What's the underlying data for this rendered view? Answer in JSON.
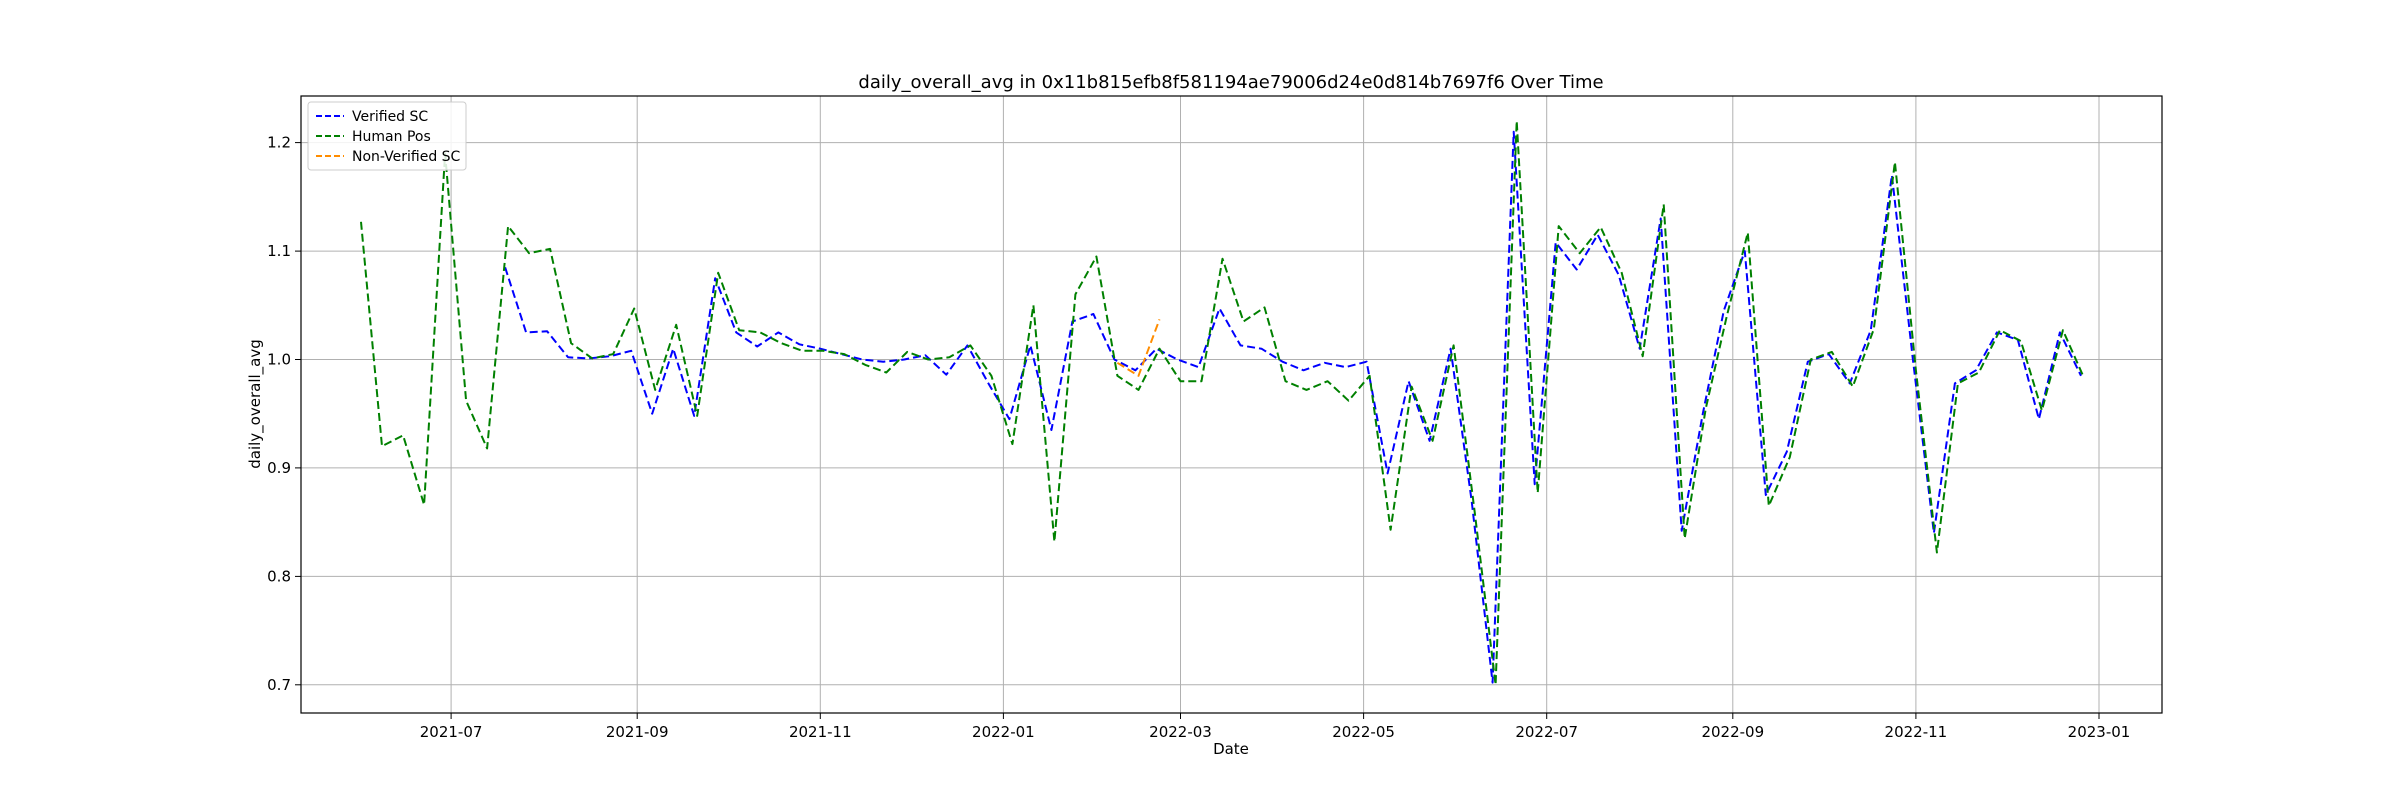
{
  "chart_data": {
    "type": "line",
    "title": "daily_overall_avg in 0x11b815efb8f581194ae79006d24e0d814b7697f6 Over Time",
    "xlabel": "Date",
    "ylabel": "daily_overall_avg",
    "xlim": [
      "2021-05-12",
      "2023-01-22"
    ],
    "ylim": [
      0.674,
      1.243
    ],
    "grid": true,
    "legend_position": "top-left",
    "x_ticks": [
      {
        "date": "2021-07-01",
        "label": "2021-07"
      },
      {
        "date": "2021-09-01",
        "label": "2021-09"
      },
      {
        "date": "2021-11-01",
        "label": "2021-11"
      },
      {
        "date": "2022-01-01",
        "label": "2022-01"
      },
      {
        "date": "2022-03-01",
        "label": "2022-03"
      },
      {
        "date": "2022-05-01",
        "label": "2022-05"
      },
      {
        "date": "2022-07-01",
        "label": "2022-07"
      },
      {
        "date": "2022-09-01",
        "label": "2022-09"
      },
      {
        "date": "2022-11-01",
        "label": "2022-11"
      },
      {
        "date": "2023-01-01",
        "label": "2023-01"
      }
    ],
    "y_ticks": [
      {
        "value": 0.7,
        "label": "0.7"
      },
      {
        "value": 0.8,
        "label": "0.8"
      },
      {
        "value": 0.9,
        "label": "0.9"
      },
      {
        "value": 1.0,
        "label": "1.0"
      },
      {
        "value": 1.1,
        "label": "1.1"
      },
      {
        "value": 1.2,
        "label": "1.2"
      }
    ],
    "series": [
      {
        "name": "Verified SC",
        "color": "#0000ff",
        "points": [
          [
            "2021-07-19",
            1.085
          ],
          [
            "2021-07-26",
            1.025
          ],
          [
            "2021-08-02",
            1.026
          ],
          [
            "2021-08-09",
            1.002
          ],
          [
            "2021-08-16",
            1.001
          ],
          [
            "2021-08-23",
            1.003
          ],
          [
            "2021-08-30",
            1.008
          ],
          [
            "2021-09-06",
            0.95
          ],
          [
            "2021-09-13",
            1.01
          ],
          [
            "2021-09-20",
            0.948
          ],
          [
            "2021-09-27",
            1.075
          ],
          [
            "2021-10-04",
            1.025
          ],
          [
            "2021-10-11",
            1.012
          ],
          [
            "2021-10-18",
            1.025
          ],
          [
            "2021-10-25",
            1.014
          ],
          [
            "2021-11-01",
            1.01
          ],
          [
            "2021-11-08",
            1.005
          ],
          [
            "2021-11-15",
            1.0
          ],
          [
            "2021-11-22",
            0.998
          ],
          [
            "2021-11-29",
            1.0
          ],
          [
            "2021-12-06",
            1.004
          ],
          [
            "2021-12-13",
            0.986
          ],
          [
            "2021-12-20",
            1.013
          ],
          [
            "2021-12-27",
            0.978
          ],
          [
            "2022-01-03",
            0.945
          ],
          [
            "2022-01-10",
            1.013
          ],
          [
            "2022-01-17",
            0.935
          ],
          [
            "2022-01-24",
            1.035
          ],
          [
            "2022-01-31",
            1.042
          ],
          [
            "2022-02-07",
            1.0
          ],
          [
            "2022-02-14",
            0.99
          ],
          [
            "2022-02-21",
            1.01
          ],
          [
            "2022-02-28",
            1.0
          ],
          [
            "2022-03-07",
            0.993
          ],
          [
            "2022-03-14",
            1.047
          ],
          [
            "2022-03-21",
            1.013
          ],
          [
            "2022-03-28",
            1.01
          ],
          [
            "2022-04-04",
            0.998
          ],
          [
            "2022-04-11",
            0.99
          ],
          [
            "2022-04-18",
            0.997
          ],
          [
            "2022-04-25",
            0.993
          ],
          [
            "2022-05-02",
            0.998
          ],
          [
            "2022-05-09",
            0.895
          ],
          [
            "2022-05-16",
            0.98
          ],
          [
            "2022-05-23",
            0.925
          ],
          [
            "2022-05-30",
            1.01
          ],
          [
            "2022-06-06",
            0.87
          ],
          [
            "2022-06-13",
            0.702
          ],
          [
            "2022-06-20",
            1.21
          ],
          [
            "2022-06-27",
            0.885
          ],
          [
            "2022-07-04",
            1.108
          ],
          [
            "2022-07-11",
            1.083
          ],
          [
            "2022-07-18",
            1.115
          ],
          [
            "2022-07-25",
            1.078
          ],
          [
            "2022-08-01",
            1.01
          ],
          [
            "2022-08-08",
            1.13
          ],
          [
            "2022-08-15",
            0.842
          ],
          [
            "2022-08-22",
            0.95
          ],
          [
            "2022-08-29",
            1.045
          ],
          [
            "2022-09-05",
            1.1
          ],
          [
            "2022-09-12",
            0.875
          ],
          [
            "2022-09-19",
            0.915
          ],
          [
            "2022-09-26",
            0.998
          ],
          [
            "2022-10-03",
            1.005
          ],
          [
            "2022-10-10",
            0.978
          ],
          [
            "2022-10-17",
            1.027
          ],
          [
            "2022-10-24",
            1.17
          ],
          [
            "2022-10-31",
            1.0
          ],
          [
            "2022-11-07",
            0.84
          ],
          [
            "2022-11-14",
            0.978
          ],
          [
            "2022-11-21",
            0.99
          ],
          [
            "2022-11-28",
            1.025
          ],
          [
            "2022-12-05",
            1.018
          ],
          [
            "2022-12-12",
            0.945
          ],
          [
            "2022-12-19",
            1.025
          ],
          [
            "2022-12-26",
            0.985
          ]
        ]
      },
      {
        "name": "Human Pos",
        "color": "#008000",
        "points": [
          [
            "2021-06-01",
            1.127
          ],
          [
            "2021-06-08",
            0.92
          ],
          [
            "2021-06-15",
            0.93
          ],
          [
            "2021-06-22",
            0.866
          ],
          [
            "2021-06-29",
            1.19
          ],
          [
            "2021-07-06",
            0.962
          ],
          [
            "2021-07-13",
            0.918
          ],
          [
            "2021-07-20",
            1.123
          ],
          [
            "2021-07-27",
            1.098
          ],
          [
            "2021-08-03",
            1.102
          ],
          [
            "2021-08-10",
            1.015
          ],
          [
            "2021-08-17",
            1.001
          ],
          [
            "2021-08-24",
            1.005
          ],
          [
            "2021-08-31",
            1.047
          ],
          [
            "2021-09-07",
            0.972
          ],
          [
            "2021-09-14",
            1.032
          ],
          [
            "2021-09-21",
            0.948
          ],
          [
            "2021-09-28",
            1.08
          ],
          [
            "2021-10-05",
            1.027
          ],
          [
            "2021-10-12",
            1.025
          ],
          [
            "2021-10-19",
            1.015
          ],
          [
            "2021-10-26",
            1.008
          ],
          [
            "2021-11-02",
            1.008
          ],
          [
            "2021-11-09",
            1.005
          ],
          [
            "2021-11-16",
            0.995
          ],
          [
            "2021-11-23",
            0.988
          ],
          [
            "2021-11-30",
            1.007
          ],
          [
            "2021-12-07",
            1.0
          ],
          [
            "2021-12-14",
            1.002
          ],
          [
            "2021-12-21",
            1.013
          ],
          [
            "2021-12-28",
            0.985
          ],
          [
            "2022-01-04",
            0.922
          ],
          [
            "2022-01-11",
            1.05
          ],
          [
            "2022-01-18",
            0.832
          ],
          [
            "2022-01-25",
            1.06
          ],
          [
            "2022-02-01",
            1.095
          ],
          [
            "2022-02-08",
            0.985
          ],
          [
            "2022-02-15",
            0.972
          ],
          [
            "2022-02-22",
            1.01
          ],
          [
            "2022-03-01",
            0.98
          ],
          [
            "2022-03-08",
            0.98
          ],
          [
            "2022-03-15",
            1.093
          ],
          [
            "2022-03-22",
            1.035
          ],
          [
            "2022-03-29",
            1.048
          ],
          [
            "2022-04-05",
            0.98
          ],
          [
            "2022-04-12",
            0.972
          ],
          [
            "2022-04-19",
            0.98
          ],
          [
            "2022-04-26",
            0.962
          ],
          [
            "2022-05-03",
            0.985
          ],
          [
            "2022-05-10",
            0.843
          ],
          [
            "2022-05-17",
            0.975
          ],
          [
            "2022-05-24",
            0.925
          ],
          [
            "2022-05-31",
            1.013
          ],
          [
            "2022-06-07",
            0.86
          ],
          [
            "2022-06-14",
            0.7
          ],
          [
            "2022-06-21",
            1.22
          ],
          [
            "2022-06-28",
            0.877
          ],
          [
            "2022-07-05",
            1.123
          ],
          [
            "2022-07-12",
            1.098
          ],
          [
            "2022-07-19",
            1.122
          ],
          [
            "2022-07-26",
            1.08
          ],
          [
            "2022-08-02",
            1.003
          ],
          [
            "2022-08-09",
            1.143
          ],
          [
            "2022-08-16",
            0.835
          ],
          [
            "2022-08-23",
            0.955
          ],
          [
            "2022-08-30",
            1.04
          ],
          [
            "2022-09-06",
            1.117
          ],
          [
            "2022-09-13",
            0.865
          ],
          [
            "2022-09-20",
            0.91
          ],
          [
            "2022-09-27",
            1.0
          ],
          [
            "2022-10-04",
            1.007
          ],
          [
            "2022-10-11",
            0.975
          ],
          [
            "2022-10-18",
            1.028
          ],
          [
            "2022-10-25",
            1.182
          ],
          [
            "2022-11-01",
            0.99
          ],
          [
            "2022-11-08",
            0.822
          ],
          [
            "2022-11-15",
            0.978
          ],
          [
            "2022-11-22",
            0.988
          ],
          [
            "2022-11-29",
            1.027
          ],
          [
            "2022-12-06",
            1.017
          ],
          [
            "2022-12-13",
            0.953
          ],
          [
            "2022-12-20",
            1.027
          ],
          [
            "2022-12-27",
            0.983
          ]
        ]
      },
      {
        "name": "Non-Verified SC",
        "color": "#ff8c00",
        "points": [
          [
            "2022-02-08",
            0.997
          ],
          [
            "2022-02-15",
            0.985
          ],
          [
            "2022-02-22",
            1.037
          ]
        ]
      }
    ]
  }
}
